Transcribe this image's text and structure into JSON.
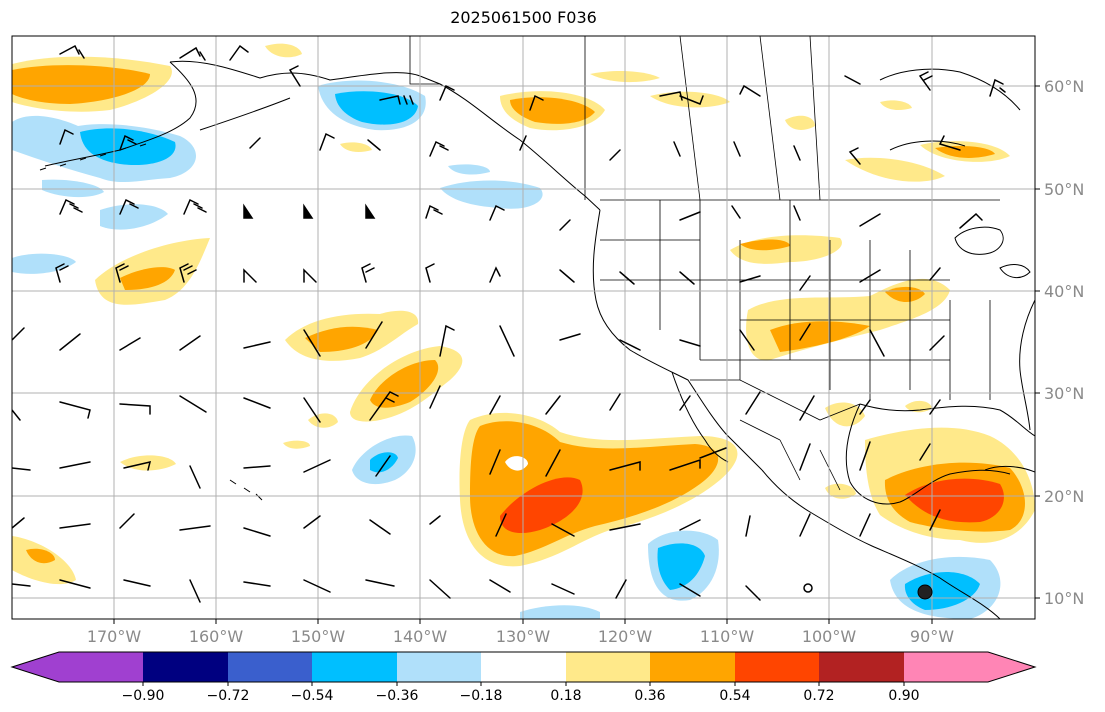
{
  "map": {
    "title": "2025061500 F036",
    "lon_labels": [
      "170°W",
      "160°W",
      "150°W",
      "140°W",
      "130°W",
      "120°W",
      "110°W",
      "100°W",
      "90°W"
    ],
    "lat_labels": [
      "60°N",
      "50°N",
      "40°N",
      "30°N",
      "20°N",
      "10°N"
    ]
  },
  "colorbar": {
    "ticks": [
      "−0.90",
      "−0.72",
      "−0.54",
      "−0.36",
      "−0.18",
      "0.18",
      "0.36",
      "0.54",
      "0.72",
      "0.90"
    ],
    "colors": [
      "#a040d0",
      "#000080",
      "#3a5fcd",
      "#00bfff",
      "#b0e0fa",
      "#ffffff",
      "#ffe98a",
      "#ffa500",
      "#ff4500",
      "#b22222",
      "#ff85b5"
    ]
  },
  "colors": {
    "strong_neg": "#00bfff",
    "weak_neg": "#b0e0fa",
    "weak_pos": "#ffe98a",
    "mid_pos": "#ffa500",
    "strong_pos": "#ff4500",
    "grid": "#b0b0b0"
  }
}
